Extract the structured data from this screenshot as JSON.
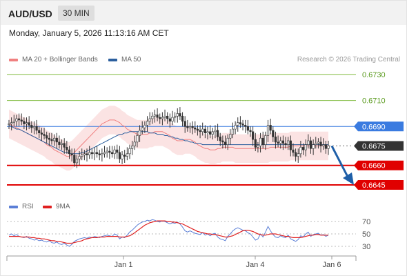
{
  "header": {
    "pair": "AUD/USD",
    "timeframe": "30 MIN",
    "datetime": "Monday, January 5, 2026 11:13:16 AM CET"
  },
  "legend": {
    "ma20": {
      "label": "MA 20 + Bollinger Bands",
      "color": "#f08080"
    },
    "ma50": {
      "label": "MA 50",
      "color": "#2c5f9e"
    },
    "credit": "Research © 2026 Trading Central"
  },
  "rsi_legend": {
    "rsi": {
      "label": "RSI",
      "color": "#5b7fd6"
    },
    "ma9": {
      "label": "9MA",
      "color": "#e02020"
    }
  },
  "colors": {
    "resistance": "#7dba3a",
    "support": "#e00000",
    "pivot": "#3a7be0",
    "current": "#333333",
    "arrow": "#1f5fa8",
    "band": "#fadada"
  },
  "chart_data": [
    {
      "type": "candlestick",
      "x_labels": [
        "Jan 1",
        "Jan 4",
        "Jan 6"
      ],
      "ylim": [
        0.6637,
        0.6738
      ],
      "levels": [
        {
          "label": "0.6730",
          "value": 0.673,
          "kind": "resistance"
        },
        {
          "label": "0.6710",
          "value": 0.671,
          "kind": "resistance"
        },
        {
          "label": "0.6690",
          "value": 0.669,
          "kind": "pivot"
        },
        {
          "label": "0.6675",
          "value": 0.6675,
          "kind": "current"
        },
        {
          "label": "0.6660",
          "value": 0.666,
          "kind": "support"
        },
        {
          "label": "0.6645",
          "value": 0.6645,
          "kind": "support"
        }
      ],
      "close": [
        0.6692,
        0.6693,
        0.6694,
        0.6696,
        0.6695,
        0.6694,
        0.6692,
        0.6693,
        0.6691,
        0.6689,
        0.669,
        0.6687,
        0.6685,
        0.6684,
        0.6683,
        0.6681,
        0.668,
        0.6679,
        0.6681,
        0.6678,
        0.6676,
        0.6677,
        0.6674,
        0.6672,
        0.6669,
        0.6668,
        0.6662,
        0.6665,
        0.6667,
        0.6668,
        0.6669,
        0.6668,
        0.667,
        0.6669,
        0.667,
        0.6669,
        0.6668,
        0.6669,
        0.667,
        0.6671,
        0.667,
        0.6669,
        0.6672,
        0.667,
        0.6665,
        0.6668,
        0.6667,
        0.6669,
        0.6673,
        0.6675,
        0.6678,
        0.6683,
        0.6687,
        0.6689,
        0.6691,
        0.6694,
        0.6696,
        0.6698,
        0.6699,
        0.6697,
        0.6696,
        0.6697,
        0.6698,
        0.6696,
        0.6694,
        0.6697,
        0.6698,
        0.67,
        0.6698,
        0.6694,
        0.669,
        0.6689,
        0.669,
        0.6689,
        0.6688,
        0.6687,
        0.6686,
        0.6688,
        0.6685,
        0.6686,
        0.6684,
        0.6686,
        0.6687,
        0.6682,
        0.6679,
        0.6678,
        0.6676,
        0.6681,
        0.6684,
        0.6688,
        0.6691,
        0.6693,
        0.6692,
        0.6691,
        0.669,
        0.6687,
        0.6686,
        0.668,
        0.6674,
        0.6675,
        0.6681,
        0.6676,
        0.6683,
        0.6691,
        0.6687,
        0.6682,
        0.6678,
        0.6677,
        0.6679,
        0.6677,
        0.6676,
        0.6679,
        0.6672,
        0.667,
        0.6667,
        0.6669,
        0.6674,
        0.6672,
        0.6676,
        0.6679,
        0.6673,
        0.6676,
        0.6677,
        0.6678,
        0.6675,
        0.6676,
        0.6673,
        0.6675
      ],
      "ma20": [
        0.6692,
        0.6691,
        0.669,
        0.6689,
        0.6688,
        0.6687,
        0.6686,
        0.6685,
        0.6684,
        0.6683,
        0.6682,
        0.6681,
        0.668,
        0.6679,
        0.6678,
        0.6676,
        0.6675,
        0.6674,
        0.6672,
        0.6671,
        0.667,
        0.6669,
        0.6668,
        0.6667,
        0.6667,
        0.6668,
        0.667,
        0.6672,
        0.6674,
        0.6676,
        0.6678,
        0.668,
        0.6682,
        0.6684,
        0.6686,
        0.6688,
        0.669,
        0.6692,
        0.6693,
        0.6694,
        0.6695,
        0.6695,
        0.6695,
        0.6694,
        0.6693,
        0.6691,
        0.669,
        0.6688,
        0.6687,
        0.6686,
        0.6685,
        0.6684,
        0.6684,
        0.6684,
        0.6684,
        0.6684,
        0.6685,
        0.6685,
        0.6686,
        0.6686,
        0.6686,
        0.6686,
        0.6685,
        0.6684,
        0.6683,
        0.6681,
        0.668,
        0.6679,
        0.6679,
        0.6679,
        0.668,
        0.668,
        0.668,
        0.6679,
        0.6678,
        0.6676,
        0.6675,
        0.6674,
        0.6673,
        0.6673,
        0.6672,
        0.6672,
        0.6672,
        0.6673,
        0.6673,
        0.6674,
        0.6674,
        0.6674,
        0.6674,
        0.6674,
        0.6673,
        0.6673,
        0.6673,
        0.6673,
        0.6673,
        0.6673,
        0.6673,
        0.6673,
        0.6673,
        0.6673,
        0.6673,
        0.6673,
        0.6673,
        0.6673,
        0.6674,
        0.6674,
        0.6674,
        0.6674,
        0.6674,
        0.6674,
        0.6674,
        0.6674,
        0.6675,
        0.6675,
        0.6675,
        0.6675,
        0.6675,
        0.6675,
        0.6675,
        0.6675,
        0.6675,
        0.6675,
        0.6675,
        0.6675,
        0.6675,
        0.6675,
        0.6675,
        0.6675
      ],
      "ma50": [
        0.6691,
        0.669,
        0.6689,
        0.6688,
        0.6688,
        0.6687,
        0.6686,
        0.6685,
        0.6684,
        0.6683,
        0.6682,
        0.6681,
        0.668,
        0.6679,
        0.6678,
        0.6677,
        0.6676,
        0.6675,
        0.6674,
        0.6673,
        0.6672,
        0.6671,
        0.667,
        0.667,
        0.6669,
        0.6669,
        0.6669,
        0.6669,
        0.6669,
        0.667,
        0.667,
        0.6671,
        0.6672,
        0.6673,
        0.6674,
        0.6675,
        0.6676,
        0.6677,
        0.6678,
        0.6679,
        0.668,
        0.6681,
        0.6682,
        0.6683,
        0.6684,
        0.6684,
        0.6685,
        0.6685,
        0.6686,
        0.6686,
        0.6686,
        0.6686,
        0.6686,
        0.6686,
        0.6686,
        0.6686,
        0.6685,
        0.6685,
        0.6685,
        0.6684,
        0.6684,
        0.6684,
        0.6683,
        0.6683,
        0.6682,
        0.6682,
        0.6681,
        0.6681,
        0.668,
        0.668,
        0.6679,
        0.6679,
        0.6678,
        0.6678,
        0.6677,
        0.6677,
        0.6677,
        0.6676,
        0.6676,
        0.6676,
        0.6676,
        0.6676,
        0.6676,
        0.6676,
        0.6676,
        0.6676,
        0.6676,
        0.6676,
        0.6676,
        0.6676,
        0.6676,
        0.6676,
        0.6676,
        0.6676,
        0.6676,
        0.6676,
        0.6676,
        0.6676,
        0.6676,
        0.6676,
        0.6676,
        0.6676,
        0.6676,
        0.6676,
        0.6676,
        0.6676,
        0.6676,
        0.6676,
        0.6676,
        0.6676,
        0.6676,
        0.6676,
        0.6676,
        0.6676,
        0.6676,
        0.6676,
        0.6676,
        0.6676,
        0.6676,
        0.6676,
        0.6676,
        0.6676,
        0.6676,
        0.6676,
        0.6676,
        0.6676,
        0.6676,
        0.6676
      ]
    },
    {
      "type": "line",
      "ylim": [
        20,
        80
      ],
      "yticks": [
        "70",
        "50",
        "30"
      ],
      "rsi": [
        48,
        50,
        47,
        49,
        46,
        45,
        44,
        46,
        43,
        42,
        40,
        41,
        39,
        40,
        38,
        37,
        39,
        36,
        35,
        37,
        34,
        33,
        35,
        32,
        30,
        33,
        38,
        40,
        42,
        43,
        44,
        43,
        45,
        44,
        46,
        45,
        44,
        46,
        47,
        48,
        47,
        46,
        50,
        48,
        42,
        45,
        44,
        48,
        53,
        56,
        60,
        64,
        67,
        69,
        70,
        72,
        71,
        73,
        72,
        70,
        69,
        71,
        70,
        68,
        66,
        68,
        67,
        69,
        66,
        61,
        55,
        53,
        55,
        53,
        51,
        50,
        49,
        52,
        48,
        50,
        47,
        50,
        51,
        45,
        42,
        41,
        39,
        46,
        50,
        55,
        58,
        60,
        58,
        56,
        55,
        52,
        50,
        45,
        40,
        42,
        50,
        45,
        53,
        62,
        55,
        49,
        45,
        44,
        47,
        45,
        44,
        48,
        42,
        40,
        38,
        41,
        47,
        45,
        50,
        53,
        46,
        49,
        50,
        51,
        48,
        49,
        46,
        48
      ],
      "ma9": [
        46,
        46,
        46,
        46,
        46,
        45,
        45,
        45,
        45,
        44,
        44,
        43,
        43,
        42,
        42,
        41,
        40,
        39,
        39,
        38,
        38,
        37,
        36,
        35,
        35,
        35,
        36,
        37,
        38,
        39,
        41,
        42,
        43,
        44,
        44,
        44,
        45,
        45,
        45,
        46,
        46,
        46,
        46,
        46,
        45,
        45,
        45,
        46,
        47,
        49,
        52,
        55,
        58,
        61,
        64,
        66,
        68,
        69,
        70,
        71,
        71,
        71,
        71,
        70,
        70,
        69,
        69,
        68,
        67,
        66,
        64,
        62,
        60,
        58,
        56,
        54,
        53,
        52,
        51,
        50,
        50,
        49,
        49,
        48,
        47,
        46,
        45,
        45,
        46,
        47,
        49,
        51,
        53,
        55,
        56,
        56,
        55,
        54,
        52,
        50,
        49,
        48,
        48,
        49,
        50,
        50,
        50,
        49,
        48,
        47,
        46,
        46,
        45,
        44,
        44,
        44,
        44,
        45,
        46,
        47,
        48,
        48,
        49,
        49,
        48,
        48,
        48,
        48
      ]
    }
  ]
}
